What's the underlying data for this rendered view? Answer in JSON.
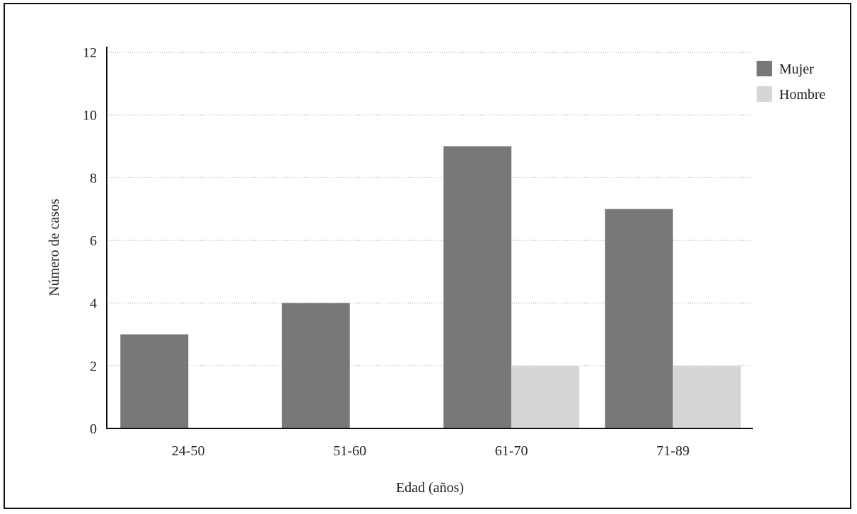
{
  "chart_data": {
    "type": "bar",
    "title": "",
    "xlabel": "Edad (años)",
    "ylabel": "Número de casos",
    "categories": [
      "24-50",
      "51-60",
      "61-70",
      "71-89"
    ],
    "series": [
      {
        "name": "Mujer",
        "values": [
          3,
          4,
          9,
          7
        ],
        "color": "#787878"
      },
      {
        "name": "Hombre",
        "values": [
          0,
          0,
          2,
          2
        ],
        "color": "#d6d6d6"
      }
    ],
    "ylim": [
      0,
      12
    ],
    "yticks": [
      0,
      2,
      4,
      6,
      8,
      10,
      12
    ],
    "grid": true,
    "legend": "top-right"
  }
}
